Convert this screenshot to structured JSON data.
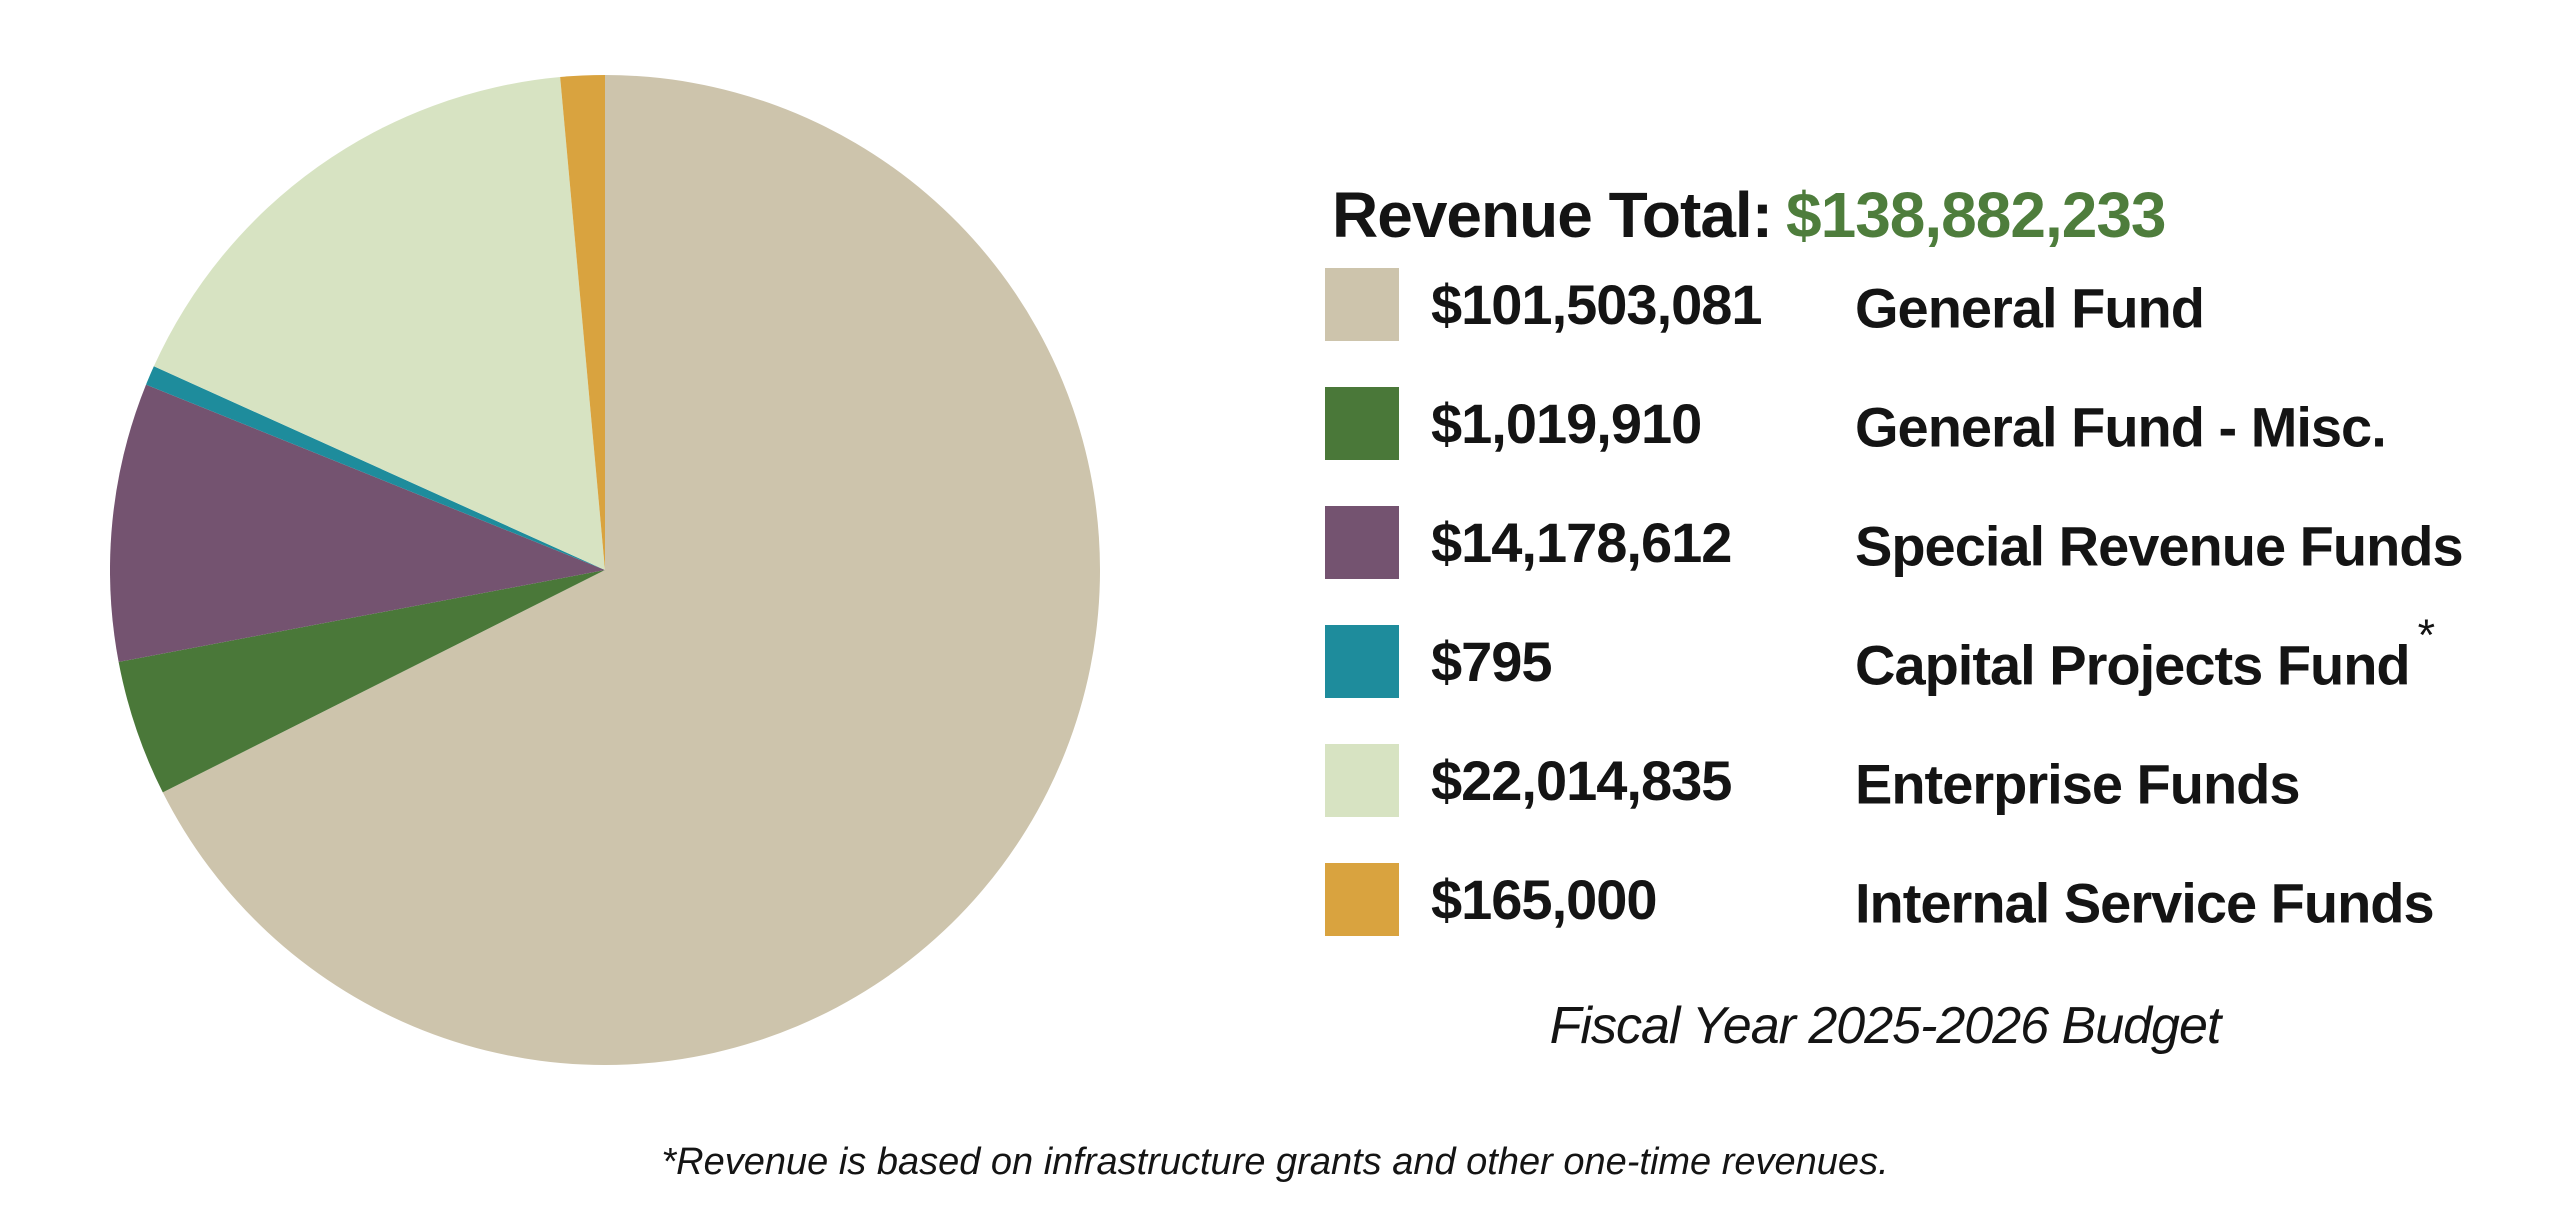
{
  "header": {
    "label": "Revenue Total:",
    "amount": "$138,882,233",
    "amount_color": "#4E7D3C"
  },
  "chart_data": {
    "type": "pie",
    "title": "Revenue Total: $138,882,233",
    "total": 138882233,
    "currency": "USD",
    "legend_position": "right",
    "slices": [
      {
        "label": "General Fund",
        "value": 101503081,
        "amount_text": "$101,503,081",
        "color": "#CDC4AC",
        "start_deg": 0,
        "end_deg": 243.3
      },
      {
        "label": "General Fund - Misc.",
        "value": 1019910,
        "amount_text": "$1,019,910",
        "color": "#4A7839",
        "start_deg": 243.3,
        "end_deg": 259.3
      },
      {
        "label": "Special Revenue Funds",
        "value": 14178612,
        "amount_text": "$14,178,612",
        "color": "#745370",
        "start_deg": 259.3,
        "end_deg": 292.0
      },
      {
        "label": "Capital Projects Fund",
        "value": 795,
        "amount_text": "$795",
        "color": "#1E8C9C",
        "start_deg": 292.0,
        "end_deg": 294.3,
        "footnote_marker": "*"
      },
      {
        "label": "Enterprise Funds",
        "value": 22014835,
        "amount_text": "$22,014,835",
        "color": "#D7E3C2",
        "start_deg": 294.3,
        "end_deg": 354.8
      },
      {
        "label": "Internal Service Funds",
        "value": 165000,
        "amount_text": "$165,000",
        "color": "#D9A33F",
        "start_deg": 354.8,
        "end_deg": 360
      }
    ]
  },
  "caption": "Fiscal Year 2025-2026 Budget",
  "footnote": "*Revenue is based on infrastructure grants and other one-time revenues."
}
